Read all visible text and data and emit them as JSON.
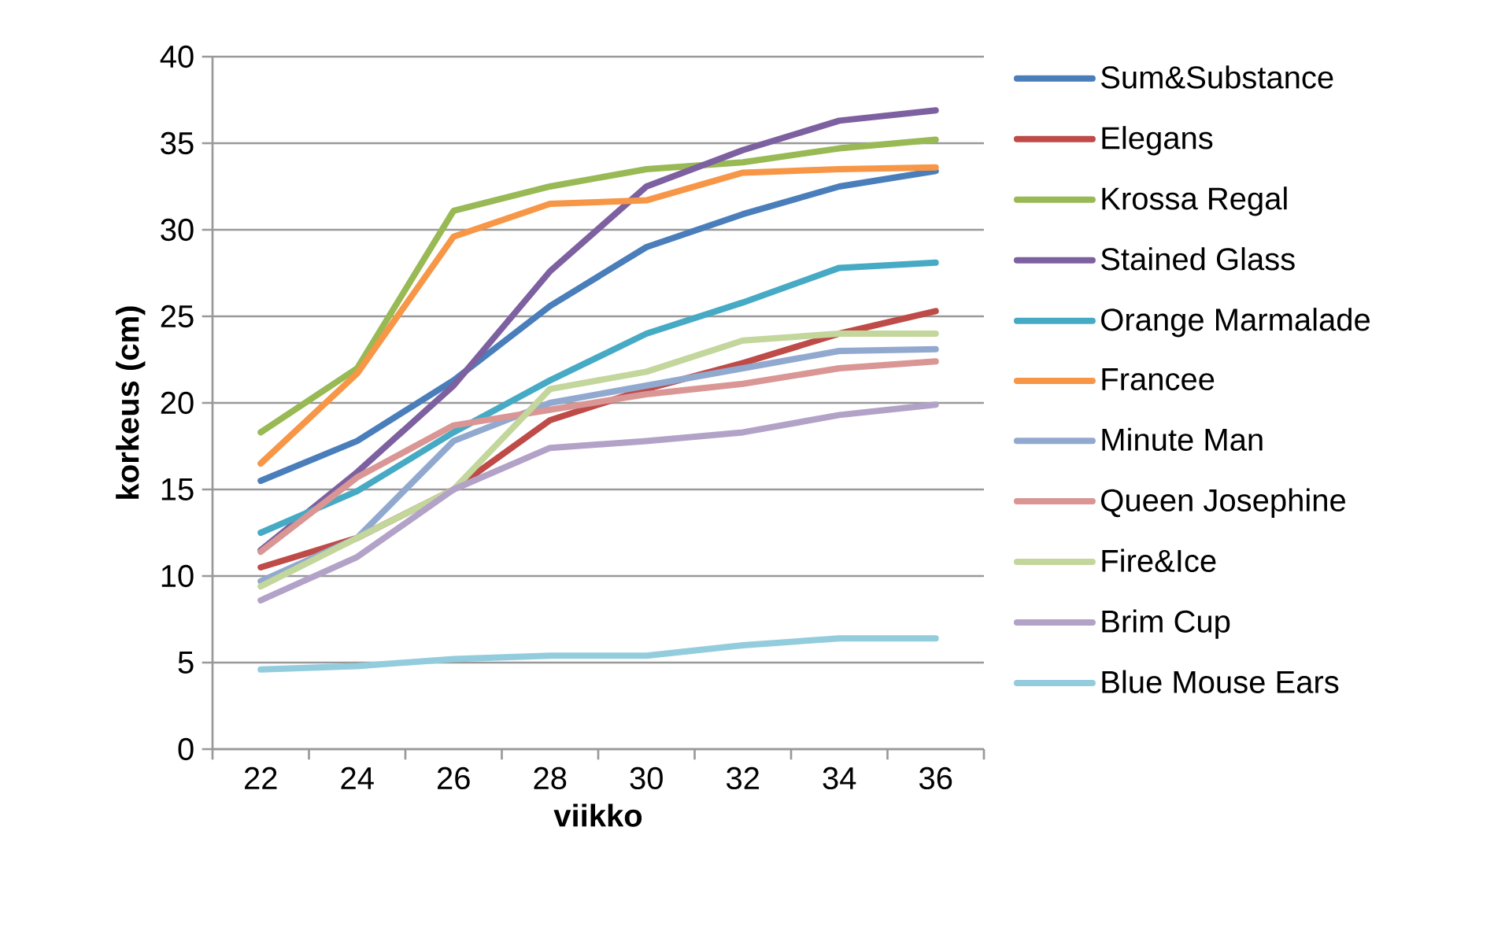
{
  "chart_data": {
    "type": "line",
    "xlabel": "viikko",
    "ylabel": "korkeus (cm)",
    "categories": [
      "22",
      "24",
      "26",
      "28",
      "30",
      "32",
      "34",
      "36"
    ],
    "ylim": [
      0,
      40
    ],
    "yticks": [
      0,
      5,
      10,
      15,
      20,
      25,
      30,
      35,
      40
    ],
    "grid": "y",
    "legend": "right",
    "marker": "none",
    "line_style": "solid",
    "series": [
      {
        "name": "Sum&Substance",
        "color": "#4a7ebb",
        "values": [
          15.5,
          17.8,
          21.3,
          25.6,
          29,
          30.9,
          32.5,
          33.4
        ]
      },
      {
        "name": "Elegans",
        "color": "#be4b48",
        "values": [
          10.5,
          12.2,
          15,
          19,
          20.8,
          22.3,
          24,
          25.3
        ]
      },
      {
        "name": "Krossa Regal",
        "color": "#98b954",
        "values": [
          18.3,
          22,
          31.1,
          32.5,
          33.5,
          33.9,
          34.7,
          35.2
        ]
      },
      {
        "name": "Stained Glass",
        "color": "#7d60a0",
        "values": [
          11.5,
          16,
          21,
          27.6,
          32.5,
          34.6,
          36.3,
          36.9
        ]
      },
      {
        "name": "Orange Marmalade",
        "color": "#46aac5",
        "values": [
          12.5,
          14.9,
          18.3,
          21.3,
          24,
          25.8,
          27.8,
          28.1
        ]
      },
      {
        "name": "Francee",
        "color": "#f79646",
        "values": [
          16.5,
          21.7,
          29.6,
          31.5,
          31.7,
          33.3,
          33.5,
          33.6
        ]
      },
      {
        "name": "Minute Man",
        "color": "#92a9cf",
        "values": [
          9.7,
          12.2,
          17.8,
          20,
          21,
          22,
          23,
          23.1
        ]
      },
      {
        "name": "Queen Josephine",
        "color": "#d99694",
        "values": [
          11.4,
          15.7,
          18.7,
          19.6,
          20.5,
          21.1,
          22,
          22.4
        ]
      },
      {
        "name": "Fire&Ice",
        "color": "#c3d69b",
        "values": [
          9.4,
          12.2,
          15,
          20.8,
          21.8,
          23.6,
          24,
          24
        ]
      },
      {
        "name": "Brim Cup",
        "color": "#b3a2c7",
        "values": [
          8.6,
          11.1,
          15,
          17.4,
          17.8,
          18.3,
          19.3,
          19.9
        ]
      },
      {
        "name": "Blue Mouse Ears",
        "color": "#93cddd",
        "values": [
          4.6,
          4.8,
          5.2,
          5.4,
          5.4,
          6,
          6.4,
          6.4
        ]
      }
    ]
  }
}
